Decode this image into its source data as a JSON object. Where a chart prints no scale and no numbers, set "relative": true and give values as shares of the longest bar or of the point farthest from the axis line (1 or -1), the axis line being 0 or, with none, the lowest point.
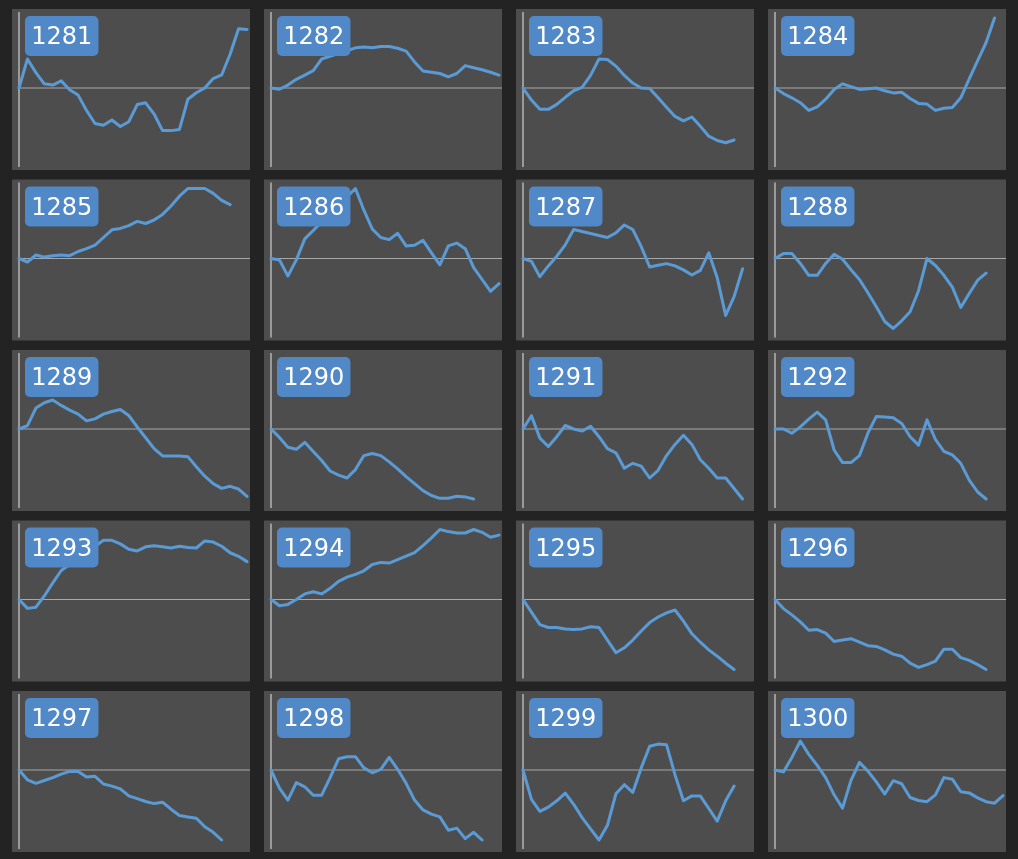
{
  "chart_data": [
    {
      "type": "line",
      "title": "1281",
      "relative": true,
      "categories": [
        null,
        null,
        null,
        null,
        null,
        null,
        null,
        null,
        null,
        null,
        null,
        null,
        null,
        null,
        null,
        null,
        null,
        null,
        null,
        null,
        null,
        null,
        null,
        null,
        null,
        null,
        null,
        null
      ],
      "series": [
        {
          "color": "#5b9bd5",
          "values": [
            0,
            0.49,
            0.26,
            0.07,
            0.05,
            0.12,
            -0.03,
            -0.12,
            -0.38,
            -0.6,
            -0.63,
            -0.54,
            -0.65,
            -0.57,
            -0.28,
            -0.25,
            -0.44,
            -0.72,
            -0.72,
            -0.7,
            -0.19,
            -0.08,
            0,
            0.16,
            0.22,
            0.57,
            1,
            0.99
          ]
        }
      ]
    },
    {
      "type": "line",
      "title": "1282",
      "relative": true,
      "categories": [
        null,
        null,
        null,
        null,
        null,
        null,
        null,
        null,
        null,
        null,
        null,
        null,
        null,
        null,
        null,
        null,
        null,
        null,
        null,
        null,
        null,
        null,
        null,
        null,
        null,
        null,
        null,
        null
      ],
      "series": [
        {
          "color": "#5b9bd5",
          "values": [
            0,
            -0.03,
            0.07,
            0.21,
            0.31,
            0.42,
            0.7,
            null,
            null,
            null,
            0.97,
            0.99,
            0.97,
            1,
            1,
            0.96,
            0.89,
            0.63,
            0.41,
            0.38,
            0.35,
            0.27,
            0.35,
            0.54,
            0.49,
            0.44,
            0.38,
            0.31
          ]
        }
      ]
    },
    {
      "type": "line",
      "title": "1283",
      "relative": true,
      "categories": [
        null,
        null,
        null,
        null,
        null,
        null,
        null,
        null,
        null,
        null,
        null,
        null,
        null,
        null,
        null,
        null,
        null,
        null,
        null,
        null,
        null,
        null,
        null,
        null,
        null,
        null,
        null,
        null
      ],
      "series": [
        {
          "color": "#5b9bd5",
          "values": [
            0,
            -0.22,
            -0.39,
            -0.39,
            -0.3,
            -0.17,
            -0.05,
            0.01,
            0.23,
            0.53,
            0.52,
            0.4,
            0.23,
            0.09,
            0,
            -0.01,
            -0.18,
            -0.35,
            -0.52,
            -0.6,
            -0.53,
            -0.7,
            -0.88,
            -0.96,
            -1,
            -0.95,
            null,
            null
          ]
        }
      ]
    },
    {
      "type": "line",
      "title": "1284",
      "relative": true,
      "categories": [
        null,
        null,
        null,
        null,
        null,
        null,
        null,
        null,
        null,
        null,
        null,
        null,
        null,
        null,
        null,
        null,
        null,
        null,
        null,
        null,
        null,
        null,
        null,
        null,
        null,
        null,
        null,
        null
      ],
      "series": [
        {
          "color": "#5b9bd5",
          "values": [
            0,
            -0.08,
            -0.14,
            -0.21,
            -0.32,
            -0.27,
            -0.16,
            -0.02,
            0.06,
            0.02,
            -0.02,
            -0.01,
            0,
            -0.04,
            -0.07,
            -0.06,
            -0.15,
            -0.22,
            -0.23,
            -0.32,
            -0.29,
            -0.28,
            -0.14,
            0.13,
            0.39,
            0.65,
            1,
            null
          ]
        }
      ]
    },
    {
      "type": "line",
      "title": "1285",
      "relative": true,
      "categories": [
        null,
        null,
        null,
        null,
        null,
        null,
        null,
        null,
        null,
        null,
        null,
        null,
        null,
        null,
        null,
        null,
        null,
        null,
        null,
        null,
        null,
        null,
        null,
        null,
        null,
        null,
        null,
        null
      ],
      "series": [
        {
          "color": "#5b9bd5",
          "values": [
            0,
            -0.05,
            0.05,
            0.02,
            0.04,
            0.05,
            0.04,
            0.1,
            0.14,
            0.19,
            0.3,
            0.41,
            0.43,
            0.47,
            0.53,
            0.5,
            0.55,
            0.63,
            0.75,
            0.89,
            1,
            1,
            1,
            0.93,
            0.83,
            0.77,
            null,
            null
          ]
        }
      ]
    },
    {
      "type": "line",
      "title": "1286",
      "relative": true,
      "categories": [
        null,
        null,
        null,
        null,
        null,
        null,
        null,
        null,
        null,
        null,
        null,
        null,
        null,
        null,
        null,
        null,
        null,
        null,
        null,
        null,
        null,
        null,
        null,
        null,
        null,
        null,
        null,
        null
      ],
      "series": [
        {
          "color": "#5b9bd5",
          "values": [
            0,
            -0.02,
            -0.25,
            -0.02,
            0.28,
            null,
            null,
            null,
            null,
            null,
            1,
            0.69,
            0.42,
            0.3,
            0.27,
            0.36,
            0.18,
            0.19,
            0.26,
            0.08,
            -0.09,
            0.18,
            0.22,
            0.14,
            -0.13,
            -0.3,
            -0.47,
            -0.36
          ]
        }
      ]
    },
    {
      "type": "line",
      "title": "1287",
      "relative": true,
      "categories": [
        null,
        null,
        null,
        null,
        null,
        null,
        null,
        null,
        null,
        null,
        null,
        null,
        null,
        null,
        null,
        null,
        null,
        null,
        null,
        null,
        null,
        null,
        null,
        null,
        null,
        null,
        null,
        null
      ],
      "series": [
        {
          "color": "#5b9bd5",
          "values": [
            0,
            -0.05,
            -0.32,
            -0.13,
            0.04,
            0.24,
            0.51,
            null,
            null,
            null,
            0.37,
            0.45,
            0.59,
            0.51,
            0.21,
            -0.15,
            -0.12,
            -0.09,
            -0.13,
            -0.2,
            -0.29,
            -0.21,
            0.1,
            -0.34,
            -1,
            -0.67,
            -0.18,
            null
          ]
        }
      ]
    },
    {
      "type": "line",
      "title": "1288",
      "relative": true,
      "categories": [
        null,
        null,
        null,
        null,
        null,
        null,
        null,
        null,
        null,
        null,
        null,
        null,
        null,
        null,
        null,
        null,
        null,
        null,
        null,
        null,
        null,
        null,
        null,
        null,
        null,
        null,
        null,
        null
      ],
      "series": [
        {
          "color": "#5b9bd5",
          "values": [
            0,
            0.07,
            0.07,
            -0.07,
            -0.24,
            -0.24,
            -0.07,
            0.06,
            -0.01,
            -0.16,
            -0.3,
            -0.49,
            -0.69,
            -0.9,
            -1,
            -0.89,
            -0.76,
            -0.46,
            0,
            -0.1,
            -0.24,
            -0.41,
            -0.7,
            -0.5,
            -0.31,
            -0.21,
            null,
            null
          ]
        }
      ]
    },
    {
      "type": "line",
      "title": "1289",
      "relative": true,
      "categories": [
        null,
        null,
        null,
        null,
        null,
        null,
        null,
        null,
        null,
        null,
        null,
        null,
        null,
        null,
        null,
        null,
        null,
        null,
        null,
        null,
        null,
        null,
        null,
        null,
        null,
        null,
        null,
        null
      ],
      "series": [
        {
          "color": "#5b9bd5",
          "values": [
            0,
            0.05,
            0.31,
            0.39,
            0.43,
            0.35,
            0.28,
            0.22,
            0.12,
            0.15,
            0.22,
            0.26,
            0.29,
            0.2,
            0.03,
            -0.13,
            -0.29,
            -0.4,
            -0.4,
            -0.4,
            -0.41,
            -0.56,
            -0.7,
            -0.81,
            -0.88,
            -0.85,
            -0.89,
            -1
          ]
        }
      ]
    },
    {
      "type": "line",
      "title": "1290",
      "relative": true,
      "categories": [
        null,
        null,
        null,
        null,
        null,
        null,
        null,
        null,
        null,
        null,
        null,
        null,
        null,
        null,
        null,
        null,
        null,
        null,
        null,
        null,
        null,
        null,
        null,
        null,
        null,
        null,
        null,
        null
      ],
      "series": [
        {
          "color": "#5b9bd5",
          "values": [
            0,
            -0.12,
            -0.26,
            -0.29,
            -0.19,
            -0.32,
            -0.45,
            -0.6,
            -0.66,
            -0.7,
            -0.58,
            -0.38,
            -0.35,
            -0.38,
            -0.47,
            -0.57,
            -0.68,
            -0.78,
            -0.88,
            -0.95,
            -0.99,
            -0.99,
            -0.96,
            -0.97,
            -1,
            null,
            null,
            null
          ]
        }
      ]
    },
    {
      "type": "line",
      "title": "1291",
      "relative": true,
      "categories": [
        null,
        null,
        null,
        null,
        null,
        null,
        null,
        null,
        null,
        null,
        null,
        null,
        null,
        null,
        null,
        null,
        null,
        null,
        null,
        null,
        null,
        null,
        null,
        null,
        null,
        null,
        null,
        null
      ],
      "series": [
        {
          "color": "#5b9bd5",
          "values": [
            0,
            0.19,
            -0.13,
            -0.25,
            -0.11,
            0.05,
            0,
            -0.03,
            0.04,
            -0.11,
            -0.28,
            -0.34,
            -0.56,
            -0.49,
            -0.53,
            -0.7,
            -0.59,
            -0.38,
            -0.22,
            -0.09,
            -0.22,
            -0.44,
            -0.56,
            -0.7,
            -0.7,
            -0.85,
            -1,
            null
          ]
        }
      ]
    },
    {
      "type": "line",
      "title": "1292",
      "relative": true,
      "categories": [
        null,
        null,
        null,
        null,
        null,
        null,
        null,
        null,
        null,
        null,
        null,
        null,
        null,
        null,
        null,
        null,
        null,
        null,
        null,
        null,
        null,
        null,
        null,
        null,
        null,
        null,
        null,
        null
      ],
      "series": [
        {
          "color": "#5b9bd5",
          "values": [
            0,
            0,
            -0.06,
            0.03,
            0.14,
            0.24,
            0.13,
            -0.3,
            -0.48,
            -0.48,
            -0.38,
            -0.06,
            0.18,
            0.17,
            0.16,
            0.08,
            -0.11,
            -0.23,
            0.13,
            -0.15,
            -0.32,
            -0.37,
            -0.49,
            -0.73,
            -0.9,
            -1,
            null,
            null
          ]
        }
      ]
    },
    {
      "type": "line",
      "title": "1293",
      "relative": true,
      "categories": [
        null,
        null,
        null,
        null,
        null,
        null,
        null,
        null,
        null,
        null,
        null,
        null,
        null,
        null,
        null,
        null,
        null,
        null,
        null,
        null,
        null,
        null,
        null,
        null,
        null,
        null,
        null,
        null
      ],
      "series": [
        {
          "color": "#5b9bd5",
          "values": [
            0,
            -0.15,
            -0.13,
            0.06,
            0.28,
            0.49,
            null,
            null,
            null,
            null,
            1,
            1,
            0.94,
            0.85,
            0.82,
            0.89,
            0.91,
            0.89,
            0.87,
            0.9,
            0.88,
            0.87,
            0.99,
            0.97,
            0.9,
            0.79,
            0.73,
            0.64
          ]
        }
      ]
    },
    {
      "type": "line",
      "title": "1294",
      "relative": true,
      "categories": [
        null,
        null,
        null,
        null,
        null,
        null,
        null,
        null,
        null,
        null,
        null,
        null,
        null,
        null,
        null,
        null,
        null,
        null,
        null,
        null,
        null,
        null,
        null,
        null,
        null,
        null,
        null,
        null
      ],
      "series": [
        {
          "color": "#5b9bd5",
          "values": [
            0,
            -0.09,
            -0.07,
            0,
            0.08,
            0.11,
            0.08,
            0.16,
            0.26,
            0.32,
            0.36,
            0.41,
            0.5,
            0.53,
            0.52,
            0.57,
            0.62,
            0.67,
            0.77,
            0.88,
            1,
            0.97,
            0.95,
            0.95,
            1,
            0.96,
            0.89,
            0.92
          ]
        }
      ]
    },
    {
      "type": "line",
      "title": "1295",
      "relative": true,
      "categories": [
        null,
        null,
        null,
        null,
        null,
        null,
        null,
        null,
        null,
        null,
        null,
        null,
        null,
        null,
        null,
        null,
        null,
        null,
        null,
        null,
        null,
        null,
        null,
        null,
        null,
        null,
        null,
        null
      ],
      "series": [
        {
          "color": "#5b9bd5",
          "values": [
            0,
            -0.18,
            -0.36,
            -0.4,
            -0.4,
            -0.42,
            -0.43,
            -0.42,
            -0.39,
            -0.4,
            -0.58,
            -0.76,
            -0.69,
            -0.58,
            -0.45,
            -0.33,
            -0.25,
            -0.19,
            -0.15,
            -0.31,
            -0.49,
            -0.61,
            -0.72,
            -0.81,
            -0.91,
            -1,
            null,
            null
          ]
        }
      ]
    },
    {
      "type": "line",
      "title": "1296",
      "relative": true,
      "categories": [
        null,
        null,
        null,
        null,
        null,
        null,
        null,
        null,
        null,
        null,
        null,
        null,
        null,
        null,
        null,
        null,
        null,
        null,
        null,
        null,
        null,
        null,
        null,
        null,
        null,
        null,
        null,
        null
      ],
      "series": [
        {
          "color": "#5b9bd5",
          "values": [
            0,
            -0.13,
            -0.22,
            -0.32,
            -0.44,
            -0.43,
            -0.48,
            -0.6,
            -0.58,
            -0.56,
            -0.61,
            -0.66,
            -0.67,
            -0.72,
            -0.78,
            -0.81,
            -0.91,
            -0.97,
            -0.93,
            -0.88,
            -0.71,
            -0.71,
            -0.83,
            -0.87,
            -0.93,
            -1,
            null,
            null
          ]
        }
      ]
    },
    {
      "type": "line",
      "title": "1297",
      "relative": true,
      "categories": [
        null,
        null,
        null,
        null,
        null,
        null,
        null,
        null,
        null,
        null,
        null,
        null,
        null,
        null,
        null,
        null,
        null,
        null,
        null,
        null,
        null,
        null,
        null,
        null,
        null,
        null,
        null,
        null
      ],
      "series": [
        {
          "color": "#5b9bd5",
          "values": [
            0,
            -0.14,
            -0.19,
            -0.15,
            -0.11,
            -0.06,
            -0.02,
            -0.02,
            -0.1,
            -0.09,
            -0.2,
            -0.23,
            -0.27,
            -0.37,
            -0.41,
            -0.45,
            -0.48,
            -0.46,
            -0.56,
            -0.65,
            -0.67,
            -0.69,
            -0.81,
            -0.89,
            -1,
            null,
            null,
            null
          ]
        }
      ]
    },
    {
      "type": "line",
      "title": "1298",
      "relative": true,
      "categories": [
        null,
        null,
        null,
        null,
        null,
        null,
        null,
        null,
        null,
        null,
        null,
        null,
        null,
        null,
        null,
        null,
        null,
        null,
        null,
        null,
        null,
        null,
        null,
        null,
        null,
        null,
        null,
        null
      ],
      "series": [
        {
          "color": "#5b9bd5",
          "values": [
            0,
            -0.26,
            -0.43,
            -0.18,
            -0.24,
            -0.36,
            -0.36,
            -0.11,
            0.16,
            0.19,
            0.19,
            0.03,
            -0.04,
            0.01,
            0.18,
            0.01,
            -0.19,
            -0.43,
            -0.57,
            -0.63,
            -0.67,
            -0.86,
            -0.83,
            -0.98,
            -0.89,
            -1,
            null,
            null
          ]
        }
      ]
    },
    {
      "type": "line",
      "title": "1299",
      "relative": true,
      "categories": [
        null,
        null,
        null,
        null,
        null,
        null,
        null,
        null,
        null,
        null,
        null,
        null,
        null,
        null,
        null,
        null,
        null,
        null,
        null,
        null,
        null,
        null,
        null,
        null,
        null,
        null,
        null,
        null
      ],
      "series": [
        {
          "color": "#5b9bd5",
          "values": [
            0,
            -0.42,
            -0.59,
            -0.53,
            -0.44,
            -0.33,
            -0.49,
            -0.68,
            -0.84,
            -1,
            -0.79,
            -0.34,
            -0.21,
            -0.32,
            0.03,
            0.34,
            0.37,
            0.36,
            -0.07,
            -0.44,
            -0.37,
            -0.37,
            -0.55,
            -0.73,
            -0.44,
            -0.23,
            null,
            null
          ]
        }
      ]
    },
    {
      "type": "line",
      "title": "1300",
      "relative": true,
      "categories": [
        null,
        null,
        null,
        null,
        null,
        null,
        null,
        null,
        null,
        null,
        null,
        null,
        null,
        null,
        null,
        null,
        null,
        null,
        null,
        null,
        null,
        null,
        null,
        null,
        null,
        null,
        null,
        null
      ],
      "series": [
        {
          "color": "#5b9bd5",
          "values": [
            0,
            -0.05,
            0.33,
            0.76,
            0.41,
            0.12,
            -0.2,
            -0.65,
            -1,
            -0.27,
            0.2,
            -0.03,
            -0.31,
            -0.63,
            -0.28,
            -0.36,
            -0.72,
            -0.8,
            -0.83,
            -0.65,
            -0.2,
            -0.24,
            -0.57,
            -0.6,
            -0.73,
            -0.83,
            -0.87,
            -0.67
          ]
        }
      ]
    }
  ]
}
